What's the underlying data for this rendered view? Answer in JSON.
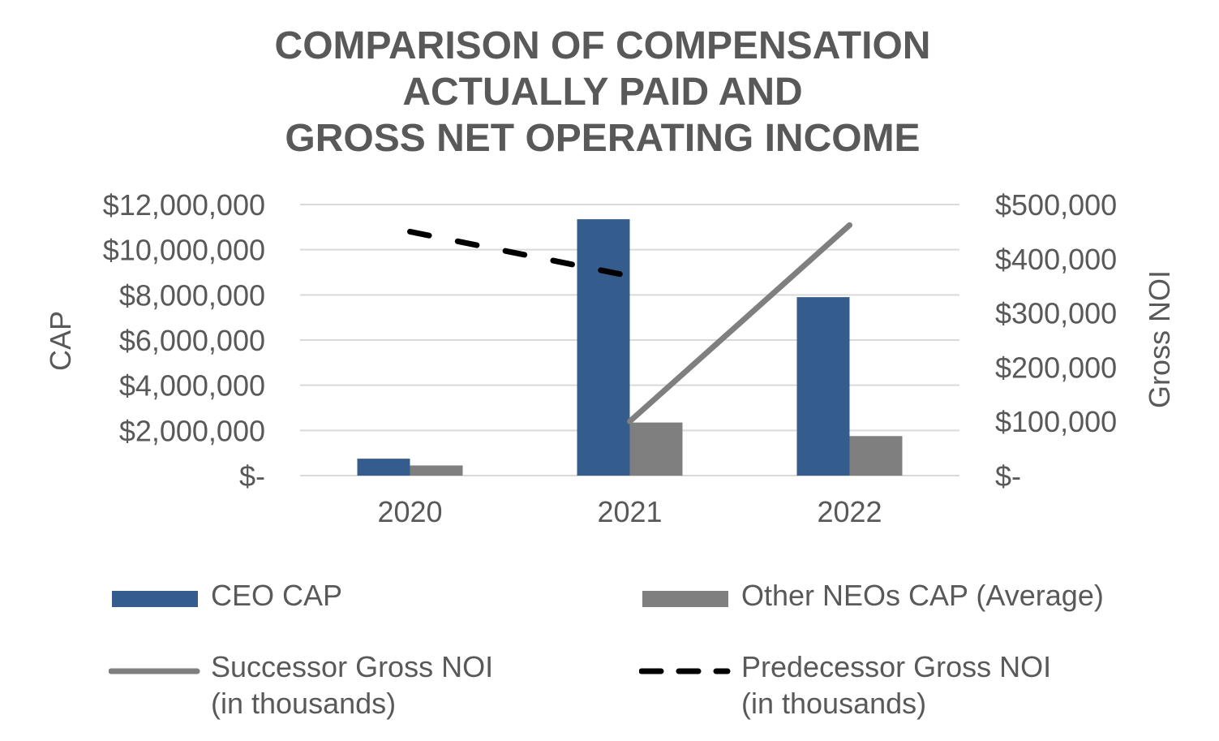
{
  "title_lines": [
    "COMPARISON OF COMPENSATION",
    "ACTUALLY PAID AND",
    "GROSS NET OPERATING INCOME"
  ],
  "chart_data": {
    "type": "bar",
    "title": "COMPARISON OF COMPENSATION ACTUALLY PAID AND GROSS NET OPERATING INCOME",
    "categories": [
      "2020",
      "2021",
      "2022"
    ],
    "ylabel": "CAP",
    "y2label": "Gross NOI",
    "ylim": [
      0,
      12000000
    ],
    "y2lim": [
      0,
      500000
    ],
    "yticks": [
      0,
      2000000,
      4000000,
      6000000,
      8000000,
      10000000,
      12000000
    ],
    "ytick_labels": [
      "$-",
      "$2,000,000",
      "$4,000,000",
      "$6,000,000",
      "$8,000,000",
      "$10,000,000",
      "$12,000,000"
    ],
    "y2ticks": [
      0,
      100000,
      200000,
      300000,
      400000,
      500000
    ],
    "y2tick_labels": [
      "$-",
      "$100,000",
      "$200,000",
      "$300,000",
      "$400,000",
      "$500,000"
    ],
    "grid": true,
    "legend_position": "bottom",
    "series": [
      {
        "name": "CEO CAP",
        "kind": "bar",
        "axis": "left",
        "color": "#345D8E",
        "values": [
          750000,
          11350000,
          7900000
        ]
      },
      {
        "name": "Other NEOs CAP (Average)",
        "kind": "bar",
        "axis": "left",
        "color": "#7F7F7F",
        "values": [
          450000,
          2350000,
          1750000
        ]
      },
      {
        "name": "Successor Gross NOI (in thousands)",
        "kind": "line",
        "axis": "right",
        "color": "#7F7F7F",
        "dash": "solid",
        "values": [
          null,
          100000,
          462000
        ]
      },
      {
        "name": "Predecessor Gross NOI (in thousands)",
        "kind": "line",
        "axis": "right",
        "color": "#000000",
        "dash": "dashed",
        "values": [
          450000,
          368000,
          null
        ]
      }
    ]
  },
  "legend": [
    {
      "label_lines": [
        "CEO CAP"
      ]
    },
    {
      "label_lines": [
        "Other NEOs CAP (Average)"
      ]
    },
    {
      "label_lines": [
        "Successor Gross NOI",
        "(in thousands)"
      ]
    },
    {
      "label_lines": [
        "Predecessor Gross NOI",
        "(in thousands)"
      ]
    }
  ]
}
